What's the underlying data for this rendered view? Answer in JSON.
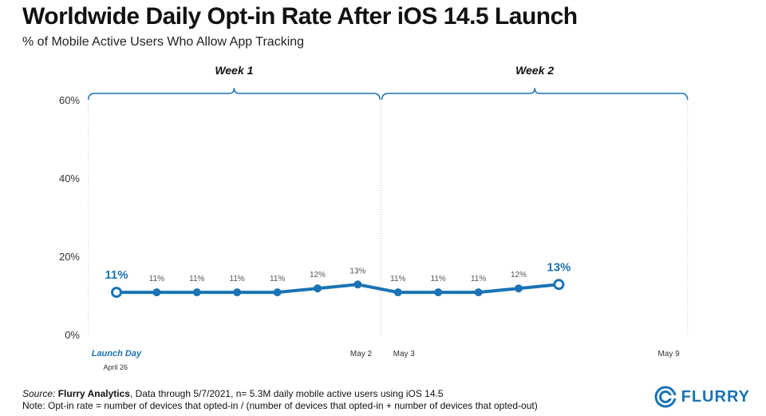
{
  "colors": {
    "accent": "#1a73b5",
    "grid": "#cccccc",
    "text": "#111111"
  },
  "chart_data": {
    "type": "line",
    "title": "Worldwide Daily Opt-in Rate After iOS 14.5 Launch",
    "subtitle": "% of Mobile Active Users Who Allow App Tracking",
    "ylim": [
      0,
      60
    ],
    "yticks": [
      0,
      20,
      40,
      60
    ],
    "ytick_labels": [
      "0%",
      "20%",
      "40%",
      "60%"
    ],
    "series": [
      {
        "name": "Opt-in rate",
        "x": [
          0,
          1,
          2,
          3,
          4,
          5,
          6,
          7,
          8,
          9,
          10,
          11
        ],
        "values": [
          11,
          11,
          11,
          11,
          11,
          12,
          13,
          11,
          11,
          11,
          12,
          13
        ],
        "labels": [
          "11%",
          "11%",
          "11%",
          "11%",
          "11%",
          "12%",
          "13%",
          "11%",
          "11%",
          "11%",
          "12%",
          "13%"
        ],
        "highlight": [
          0,
          11
        ]
      }
    ],
    "weeks": [
      {
        "label": "Week 1",
        "start": -0.7,
        "end": 6.55
      },
      {
        "label": "Week 2",
        "start": 6.6,
        "end": 14.2
      }
    ],
    "x_annotations": [
      {
        "x": -0.7,
        "label": "Launch Day",
        "sublabel": "April 26",
        "style": "accent"
      },
      {
        "x": 6.55,
        "label": "May 2",
        "align": "right"
      },
      {
        "x": 6.6,
        "label": "May 3",
        "align": "left"
      },
      {
        "x": 14.2,
        "label": "May 9",
        "align": "right"
      }
    ]
  },
  "footer": {
    "source_prefix": "Source:",
    "source_name": "Flurry Analytics",
    "source_rest": ", Data through 5/7/2021, n= 5.3M daily mobile active users using iOS 14.5",
    "note": "Note: Opt-in rate = number of devices that opted-in / (number of devices that opted-in + number of devices that opted-out)"
  },
  "logo": {
    "text": "FLURRY",
    "icon": "flurry-logo-icon"
  }
}
